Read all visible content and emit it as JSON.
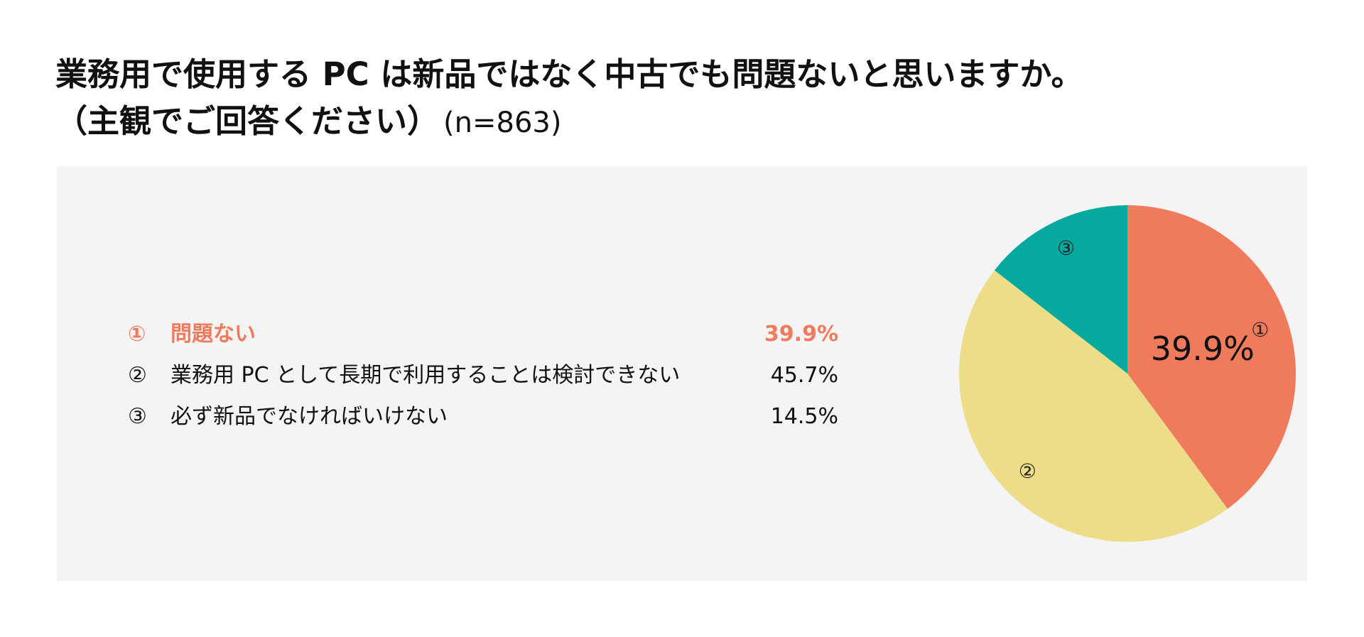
{
  "title": {
    "line1": "業務用で使用する PC は新品ではなく中古でも問題ないと思いますか。",
    "line2": "（主観でご回答ください）",
    "n": "(n=863)"
  },
  "legend": [
    {
      "num": "①",
      "label": "問題ない",
      "pct": "39.9%"
    },
    {
      "num": "②",
      "label": "業務用 PC として長期で利用することは検討できない",
      "pct": "45.7%"
    },
    {
      "num": "③",
      "label": "必ず新品でなければいけない",
      "pct": "14.5%"
    }
  ],
  "chart_data": {
    "type": "pie",
    "categories": [
      "①",
      "②",
      "③"
    ],
    "values": [
      39.9,
      45.7,
      14.5
    ],
    "colors": [
      "#f07b5c",
      "#eedd88",
      "#05a99d"
    ],
    "highlight_label": "39.9%",
    "highlight_index": 0
  },
  "colors": {
    "accent": "#f07b5c",
    "panel_bg": "#f4f4f4"
  }
}
